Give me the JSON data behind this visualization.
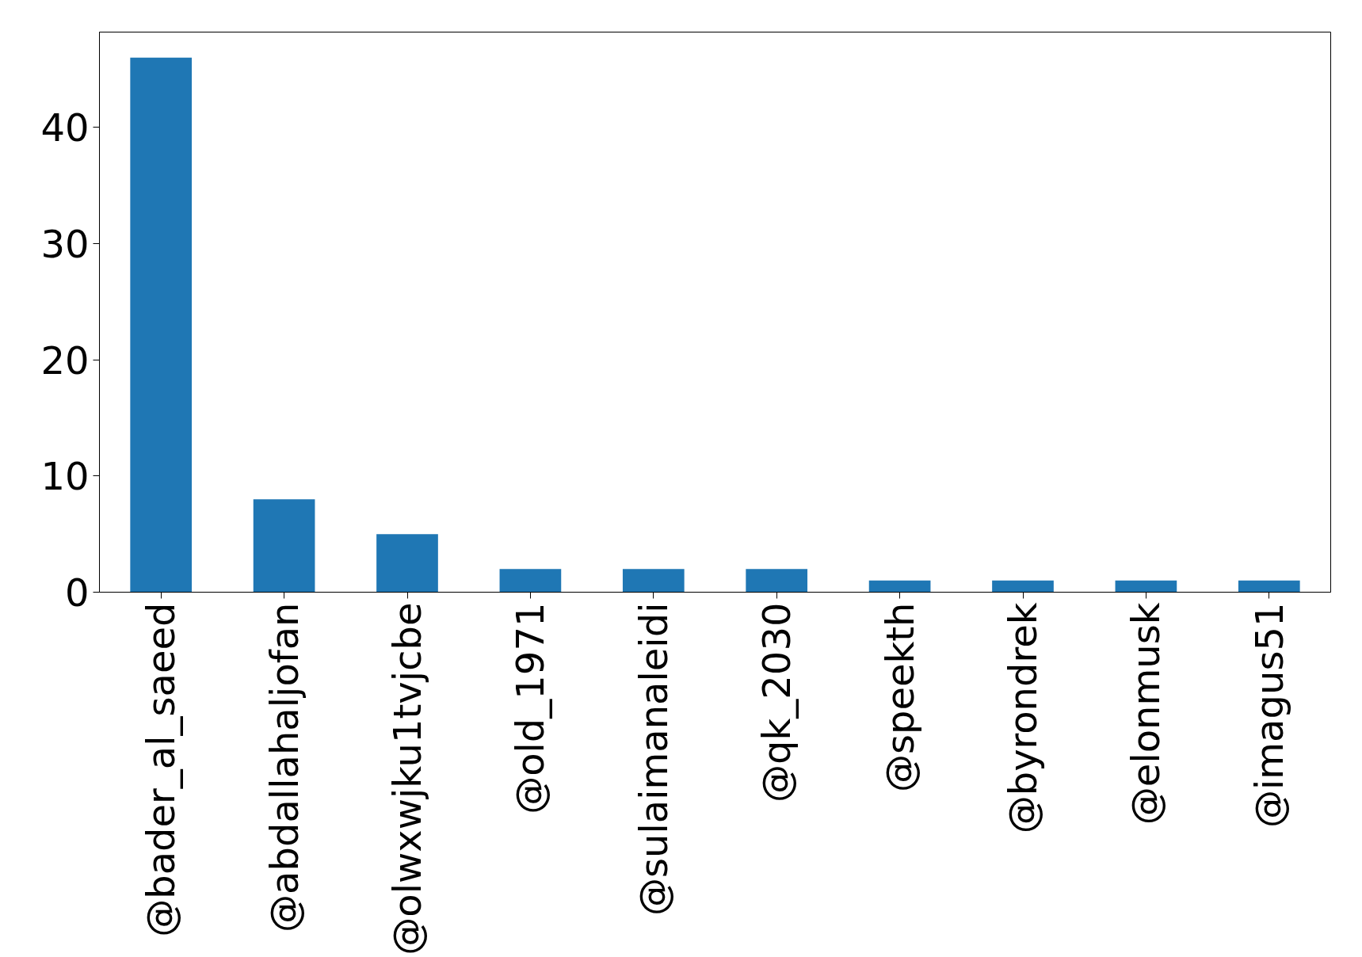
{
  "chart_data": {
    "type": "bar",
    "categories": [
      "@bader_al_saeed",
      "@abdallahaljofan",
      "@olwxwjku1tvjcbe",
      "@old_1971",
      "@sulaimanaleidi",
      "@qk_2030",
      "@speekth",
      "@byrondrek",
      "@elonmusk",
      "@imagus51"
    ],
    "values": [
      46,
      8,
      5,
      2,
      2,
      2,
      1,
      1,
      1,
      1
    ],
    "color": "#1f77b4",
    "ylim": [
      0,
      48.2
    ],
    "yticks": [
      0,
      10,
      20,
      30,
      40
    ],
    "grid": false
  }
}
